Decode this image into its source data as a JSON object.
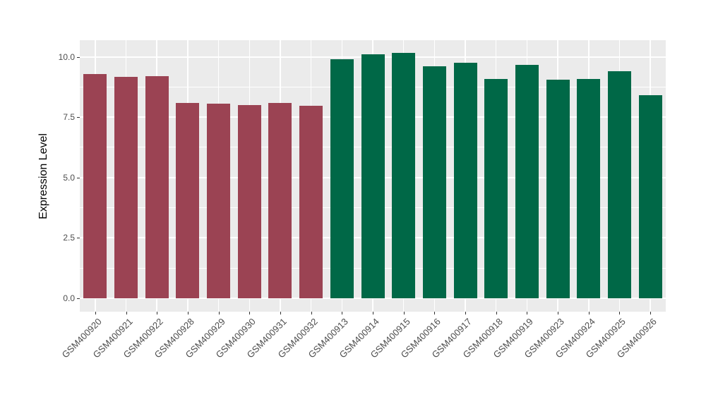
{
  "chart_data": {
    "type": "bar",
    "title": "",
    "xlabel": "",
    "ylabel": "Expression Level",
    "ylim": [
      0,
      10.7
    ],
    "y_ticks": [
      0.0,
      2.5,
      5.0,
      7.5,
      10.0
    ],
    "y_tick_labels": [
      "0.0",
      "2.5",
      "5.0",
      "7.5",
      "10.0"
    ],
    "y_minor_ticks": [
      1.25,
      3.75,
      6.25,
      8.75
    ],
    "grid": "on",
    "legend_position": "none",
    "panel_background": "#EBEBEB",
    "grid_color": "#FFFFFF",
    "tick_label_color": "#4D4D4D",
    "axis_title_color": "#000000",
    "group_colors": {
      "groupA": "#9B4353",
      "groupB": "#006847"
    },
    "categories": [
      "GSM400920",
      "GSM400921",
      "GSM400922",
      "GSM400928",
      "GSM400929",
      "GSM400930",
      "GSM400931",
      "GSM400932",
      "GSM400913",
      "GSM400914",
      "GSM400915",
      "GSM400916",
      "GSM400917",
      "GSM400918",
      "GSM400919",
      "GSM400923",
      "GSM400924",
      "GSM400925",
      "GSM400926"
    ],
    "values": [
      9.28,
      9.18,
      9.21,
      8.1,
      8.07,
      8.0,
      8.08,
      7.98,
      9.9,
      10.1,
      10.17,
      9.62,
      9.75,
      9.07,
      9.67,
      9.05,
      9.07,
      9.4,
      8.4
    ],
    "groups": [
      "groupA",
      "groupA",
      "groupA",
      "groupA",
      "groupA",
      "groupA",
      "groupA",
      "groupA",
      "groupB",
      "groupB",
      "groupB",
      "groupB",
      "groupB",
      "groupB",
      "groupB",
      "groupB",
      "groupB",
      "groupB",
      "groupB"
    ]
  }
}
